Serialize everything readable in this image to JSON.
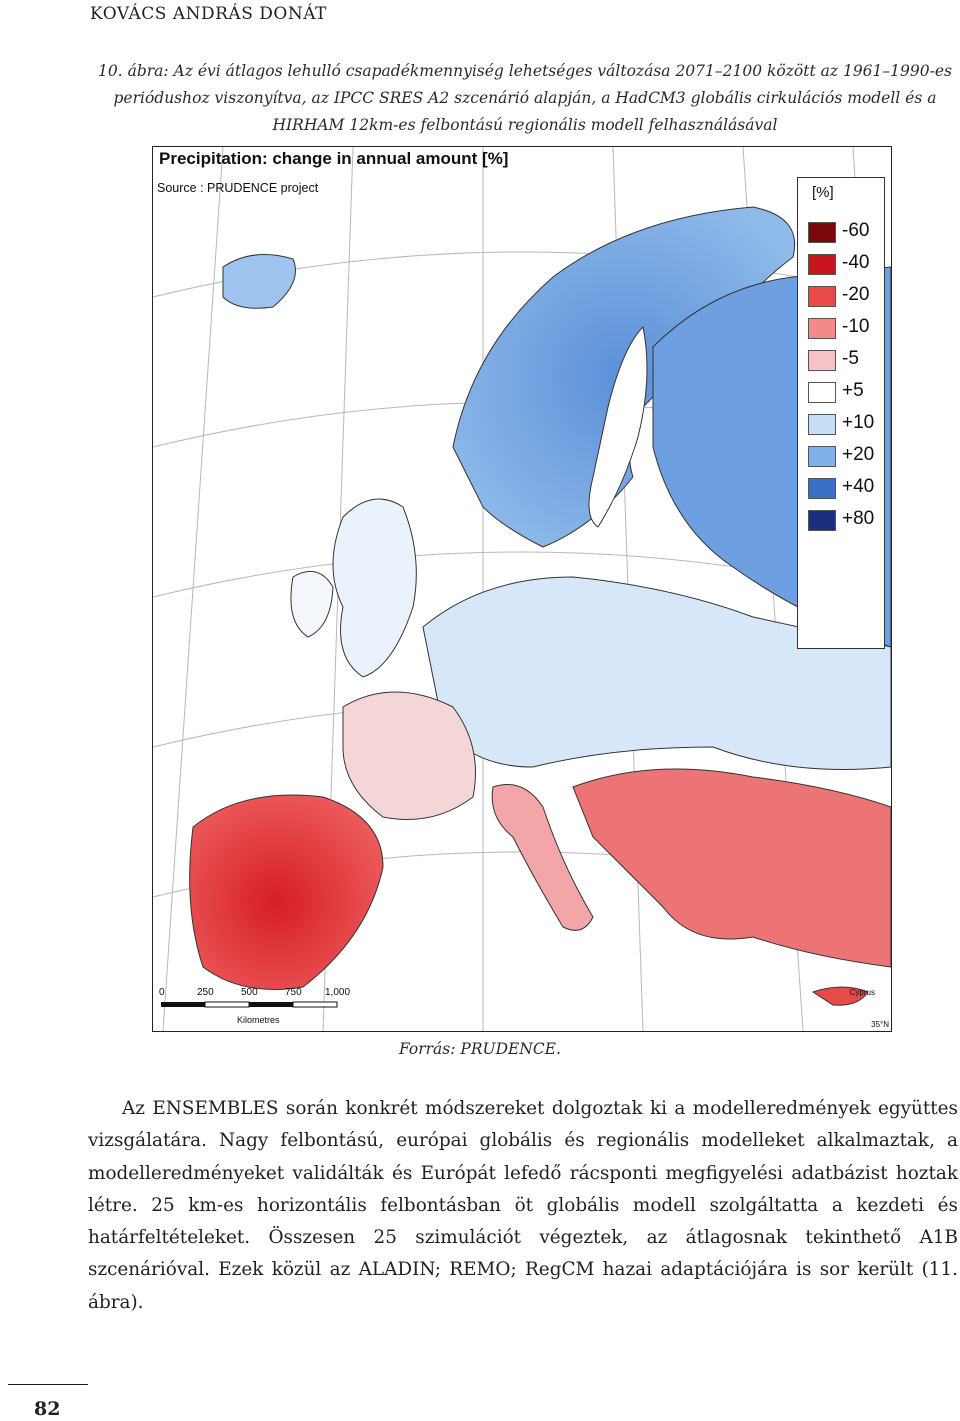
{
  "header": {
    "running_head": "KOVÁCS ANDRÁS DONÁT"
  },
  "figure": {
    "caption": "10. ábra: Az évi átlagos lehulló csapadékmennyiség lehetséges változása 2071–2100 között az 1961–1990-es periódushoz viszonyítva, az IPCC SRES A2 szcenárió alapján, a HadCM3 globális cirkulációs modell és a HIRHAM 12km-es felbontású regionális modell felhasználásával",
    "map_title": "Precipitation: change in annual amount [%]",
    "map_source": "Source : PRUDENCE project",
    "legend": {
      "unit": "[%]",
      "items": [
        {
          "label": "-60",
          "color": "#7a0a0a"
        },
        {
          "label": "-40",
          "color": "#c8141c"
        },
        {
          "label": "-20",
          "color": "#e84a4a"
        },
        {
          "label": "-10",
          "color": "#f28a8a"
        },
        {
          "label": "-5",
          "color": "#f7c2c6"
        },
        {
          "label": "+5",
          "color": "#ffffff"
        },
        {
          "label": "+10",
          "color": "#c6def5"
        },
        {
          "label": "+20",
          "color": "#7fb1e8"
        },
        {
          "label": "+40",
          "color": "#3a6fc8"
        },
        {
          "label": "+80",
          "color": "#1c2f7e"
        }
      ]
    },
    "scale_ticks": [
      "0",
      "250",
      "500",
      "750",
      "1,000"
    ],
    "scale_unit": "Kilometres",
    "inset_label": "Cyprus",
    "corner_label": "35°N",
    "source_line": "Forrás: PRUDENCE."
  },
  "body": {
    "paragraph": "Az ENSEMBLES során konkrét módszereket dolgoztak ki a modelleredmények együttes vizsgálatára. Nagy felbontású, európai globális és regionális modelleket alkalmaztak, a modelleredményeket validálták és Európát lefedő rácsponti megfigyelési adatbázist hoztak létre. 25 km-es horizontális felbontásban öt globális modell szolgáltatta a kezdeti és határfeltételeket. Összesen 25 szimulációt végeztek, az átlagosnak tekinthető A1B szcenárióval. Ezek közül az ALADIN; REMO; RegCM hazai adaptációjára is sor került (11. ábra)."
  },
  "footer": {
    "page_number": "82"
  }
}
